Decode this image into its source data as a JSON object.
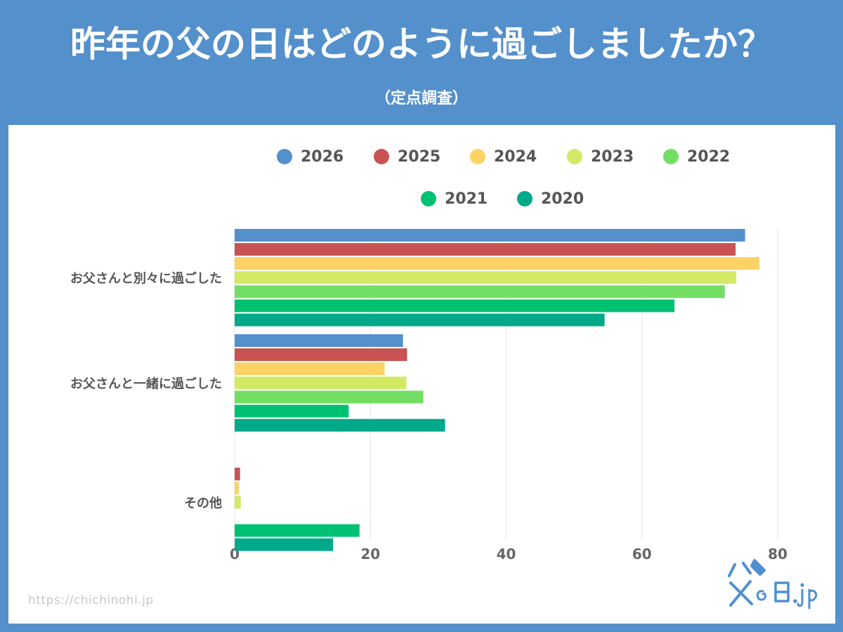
{
  "header": {
    "title": "昨年の父の日はどのように過ごしましたか？",
    "subtitle": "（定点調査）"
  },
  "footer": {
    "url": "https://chichinohi.jp",
    "logo_text": "父の日.jp"
  },
  "colors": {
    "background": "#5490cc",
    "panel": "#ffffff"
  },
  "chart_data": {
    "type": "bar",
    "orientation": "horizontal",
    "categories": [
      "お父さんと別々に過ごした",
      "お父さんと一緒に過ごした",
      "その他"
    ],
    "series": [
      {
        "name": "2026",
        "color": "#5490cc",
        "values": [
          75.2,
          24.8,
          null
        ]
      },
      {
        "name": "2025",
        "color": "#c95252",
        "values": [
          73.8,
          25.4,
          0.8
        ]
      },
      {
        "name": "2024",
        "color": "#fcd264",
        "values": [
          77.3,
          22.1,
          0.6
        ]
      },
      {
        "name": "2023",
        "color": "#d3e964",
        "values": [
          73.9,
          25.3,
          0.9
        ]
      },
      {
        "name": "2022",
        "color": "#72df64",
        "values": [
          72.2,
          27.8,
          null
        ]
      },
      {
        "name": "2021",
        "color": "#00c172",
        "values": [
          64.8,
          16.8,
          18.4
        ]
      },
      {
        "name": "2020",
        "color": "#00a98a",
        "values": [
          54.5,
          31.0,
          14.5
        ]
      }
    ],
    "xlim": [
      0,
      80
    ],
    "xticks": [
      0,
      20,
      40,
      60,
      80
    ],
    "grid": true,
    "legend_position": "top"
  }
}
